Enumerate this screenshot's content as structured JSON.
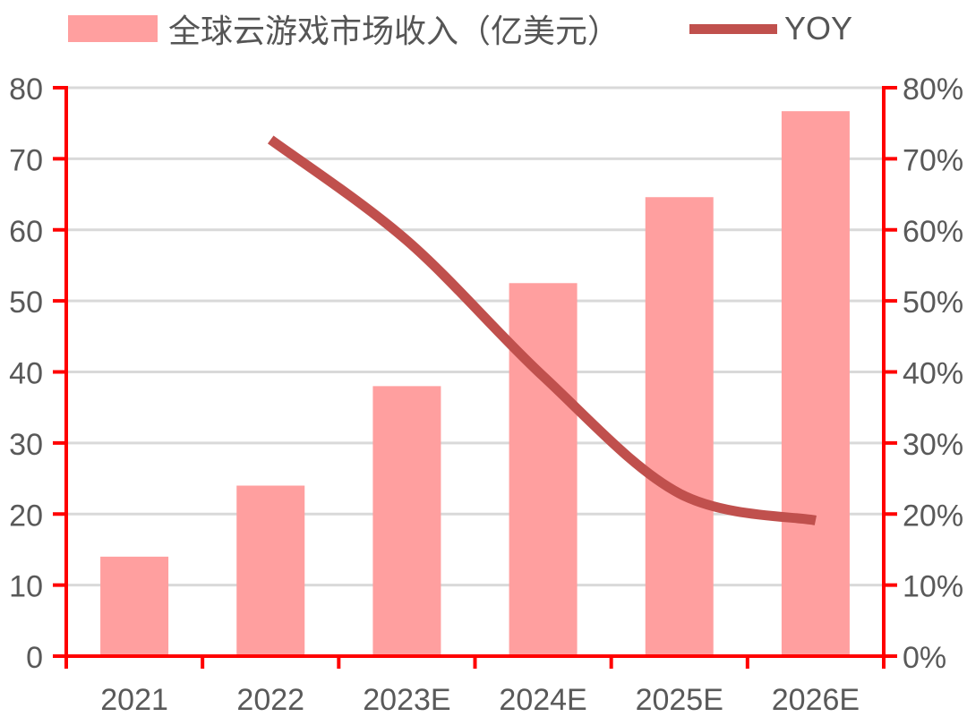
{
  "chart_data": {
    "type": "bar",
    "title": "",
    "categories": [
      "2021",
      "2022",
      "2023E",
      "2024E",
      "2025E",
      "2026E"
    ],
    "series": [
      {
        "name": "全球云游戏市场收入（亿美元）",
        "type": "bar",
        "axis": "left",
        "color": "#FF9F9F",
        "values": [
          14.0,
          24.0,
          38.0,
          52.5,
          64.6,
          76.7
        ]
      },
      {
        "name": "YOY",
        "type": "line",
        "axis": "right",
        "color": "#C0504D",
        "values": [
          null,
          72.7,
          58.5,
          39.4,
          22.9,
          19.1
        ]
      }
    ],
    "xlabel": "",
    "ylabel": "",
    "ylim": [
      0,
      80
    ],
    "y2lim": [
      0,
      80
    ],
    "yticks": [
      "0",
      "10",
      "20",
      "30",
      "40",
      "50",
      "60",
      "70",
      "80"
    ],
    "y2ticks": [
      "0%",
      "10%",
      "20%",
      "30%",
      "40%",
      "50%",
      "60%",
      "70%",
      "80%"
    ],
    "grid": true,
    "legend_position": "top"
  },
  "legend": {
    "bar_label": "全球云游戏市场收入（亿美元）",
    "line_label": "YOY"
  },
  "colors": {
    "bar": "#FF9F9F",
    "line": "#C0504D",
    "axis": "#FF0000",
    "grid": "#D9D9D9",
    "text": "#595959"
  }
}
